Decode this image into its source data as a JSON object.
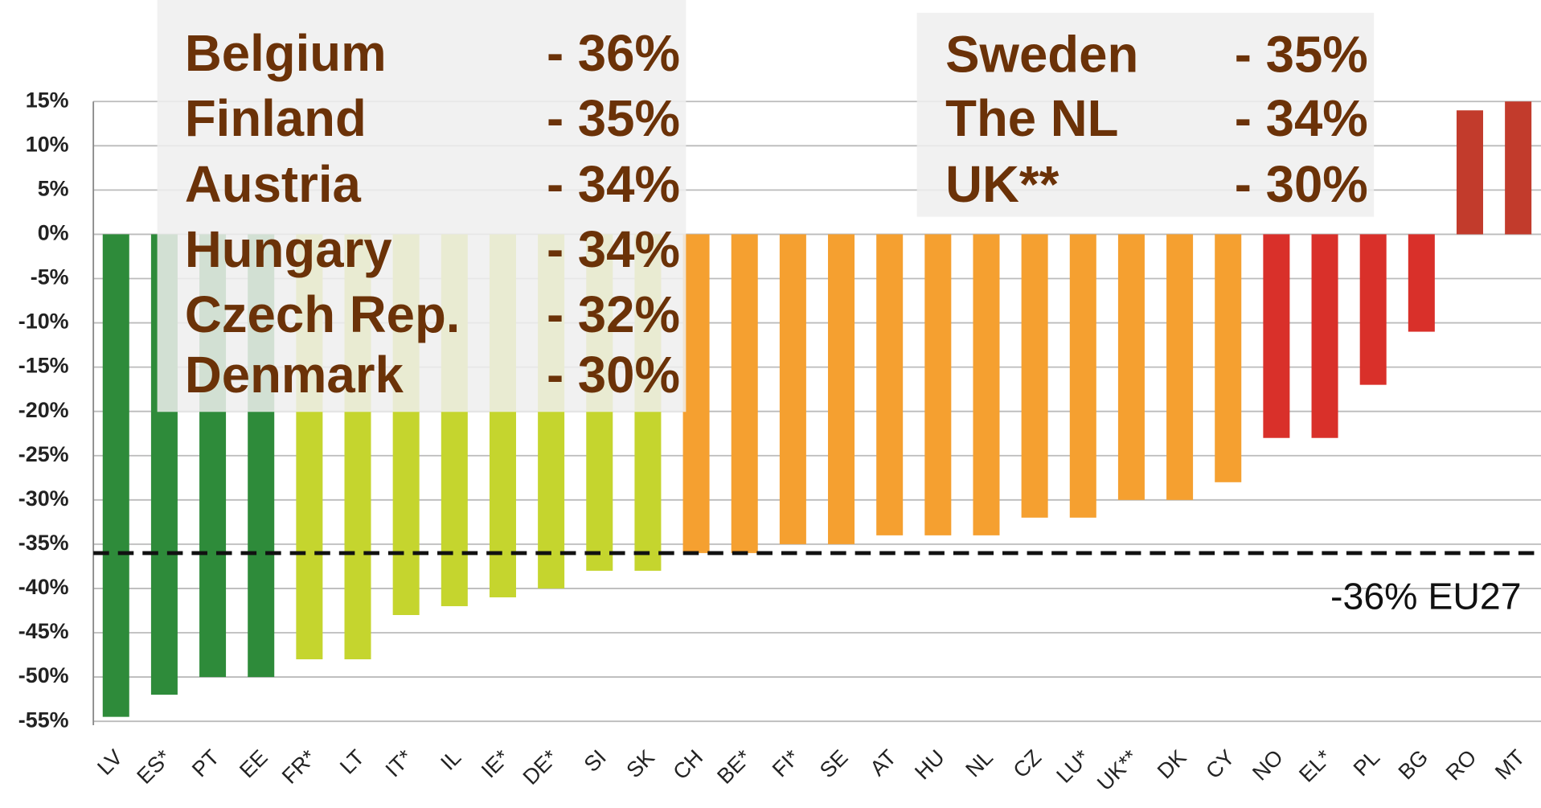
{
  "chart_data": {
    "type": "bar",
    "categories": [
      "LV",
      "ES*",
      "PT",
      "EE",
      "FR*",
      "LT",
      "IT*",
      "IL",
      "IE*",
      "DE*",
      "SI",
      "SK",
      "CH",
      "BE*",
      "FI*",
      "SE",
      "AT",
      "HU",
      "NL",
      "CZ",
      "LU*",
      "UK**",
      "DK",
      "CY",
      "NO",
      "EL*",
      "PL",
      "BG",
      "RO",
      "MT"
    ],
    "values": [
      -54.5,
      -52,
      -50,
      -50,
      -48,
      -48,
      -43,
      -42,
      -41,
      -40,
      -38,
      -38,
      -36,
      -36,
      -35,
      -35,
      -34,
      -34,
      -34,
      -32,
      -32,
      -30,
      -30,
      -28,
      -23,
      -23,
      -17,
      -11,
      14,
      15
    ],
    "colors": [
      "#2e8b3a",
      "#2e8b3a",
      "#2e8b3a",
      "#2e8b3a",
      "#c5d52e",
      "#c5d52e",
      "#c5d52e",
      "#c5d52e",
      "#c5d52e",
      "#c5d52e",
      "#c5d52e",
      "#c5d52e",
      "#f5a030",
      "#f5a030",
      "#f5a030",
      "#f5a030",
      "#f5a030",
      "#f5a030",
      "#f5a030",
      "#f5a030",
      "#f5a030",
      "#f5a030",
      "#f5a030",
      "#f5a030",
      "#d9302a",
      "#d9302a",
      "#d9302a",
      "#d9302a",
      "#c23b2c",
      "#c23b2c"
    ],
    "ylim": [
      -55,
      15
    ],
    "yticks": [
      {
        "value": 15,
        "label": "15%"
      },
      {
        "value": 10,
        "label": "10%"
      },
      {
        "value": 5,
        "label": "5%"
      },
      {
        "value": 0,
        "label": "0%"
      },
      {
        "value": -5,
        "label": "-5%"
      },
      {
        "value": -10,
        "label": "-10%"
      },
      {
        "value": -15,
        "label": "-15%"
      },
      {
        "value": -20,
        "label": "-20%"
      },
      {
        "value": -25,
        "label": "-25%"
      },
      {
        "value": -30,
        "label": "-30%"
      },
      {
        "value": -35,
        "label": "-35%"
      },
      {
        "value": -40,
        "label": "-40%"
      },
      {
        "value": -45,
        "label": "-45%"
      },
      {
        "value": -50,
        "label": "-50%"
      },
      {
        "value": -55,
        "label": "-55%"
      }
    ],
    "grid": true,
    "reference_line": {
      "value": -36,
      "label": "-36% EU27"
    },
    "annotation_boxes": [
      [
        {
          "name": "Belgium",
          "value": "- 36%"
        },
        {
          "name": "Finland",
          "value": "- 35%"
        },
        {
          "name": "Austria",
          "value": "- 34%"
        },
        {
          "name": "Hungary",
          "value": "- 34%"
        },
        {
          "name": "Czech Rep.",
          "value": "- 32%"
        },
        {
          "name": "Denmark",
          "value": "- 30%"
        }
      ],
      [
        {
          "name": "Sweden",
          "value": "- 35%"
        },
        {
          "name": "The NL",
          "value": "- 34%"
        },
        {
          "name": "UK**",
          "value": "- 30%"
        }
      ]
    ]
  }
}
